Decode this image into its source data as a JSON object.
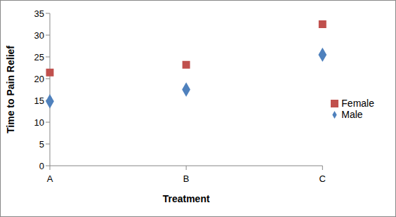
{
  "chart_data": {
    "type": "scatter",
    "x_label": "Treatment",
    "y_label": "Time to Pain Relief",
    "categories": [
      "A",
      "B",
      "C"
    ],
    "series": [
      {
        "name": "Male",
        "color": "#4f81bd",
        "marker": "diamond",
        "values": [
          14.8,
          17.5,
          25.5
        ]
      },
      {
        "name": "Female",
        "color": "#c0504d",
        "marker": "square",
        "values": [
          21.4,
          23.2,
          32.5
        ]
      }
    ],
    "ylim": [
      0,
      35
    ],
    "yticks": [
      0,
      5,
      10,
      15,
      20,
      25,
      30,
      35
    ],
    "grid": false,
    "legend": "right"
  }
}
